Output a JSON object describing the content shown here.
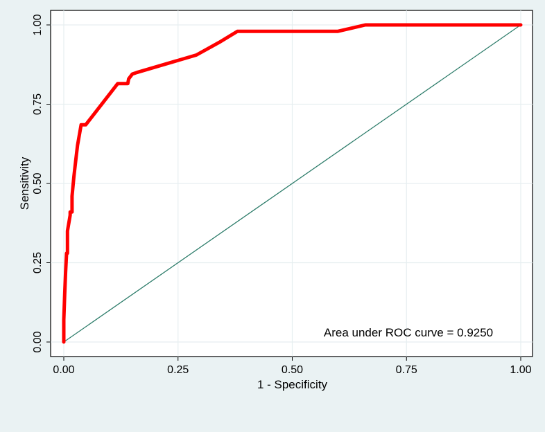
{
  "chart_data": {
    "type": "line",
    "title": "",
    "xlabel": "1 - Specificity",
    "ylabel": "Sensitivity",
    "xlim": [
      0,
      1
    ],
    "ylim": [
      0,
      1
    ],
    "xticks": [
      "0.00",
      "0.25",
      "0.50",
      "0.75",
      "1.00"
    ],
    "yticks": [
      "0.00",
      "0.25",
      "0.50",
      "0.75",
      "1.00"
    ],
    "grid": true,
    "annotation": "Area under ROC curve = 0.9250",
    "series": [
      {
        "role": "roc-curve",
        "color": "#ff0000",
        "x": [
          0.0,
          0.0,
          0.002,
          0.004,
          0.006,
          0.008,
          0.008,
          0.014,
          0.014,
          0.018,
          0.018,
          0.022,
          0.026,
          0.03,
          0.038,
          0.042,
          0.048,
          0.118,
          0.14,
          0.142,
          0.15,
          0.16,
          0.29,
          0.34,
          0.38,
          0.6,
          0.66,
          1.0
        ],
        "y": [
          0.0,
          0.07,
          0.15,
          0.22,
          0.28,
          0.28,
          0.35,
          0.4,
          0.41,
          0.41,
          0.46,
          0.52,
          0.57,
          0.62,
          0.685,
          0.685,
          0.685,
          0.815,
          0.815,
          0.83,
          0.845,
          0.85,
          0.905,
          0.945,
          0.98,
          0.98,
          1.0,
          1.0
        ]
      },
      {
        "role": "reference-line",
        "color": "#2e7d6b",
        "x": [
          0,
          1
        ],
        "y": [
          0,
          1
        ]
      }
    ]
  }
}
